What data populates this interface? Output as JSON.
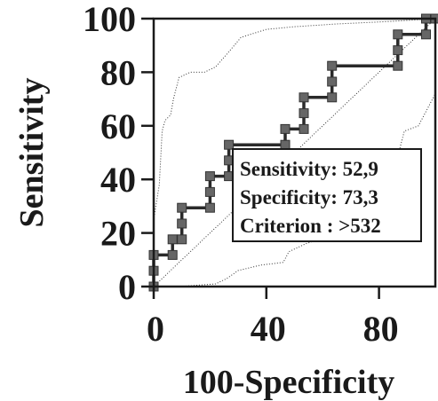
{
  "chart_data": {
    "type": "line",
    "title": "",
    "xlabel": "100-Specificity",
    "ylabel": "Sensitivity",
    "xlim": [
      0,
      100
    ],
    "ylim": [
      0,
      100
    ],
    "x_ticks": [
      "0",
      "40",
      "80"
    ],
    "y_ticks": [
      "0",
      "20",
      "40",
      "60",
      "80",
      "100"
    ],
    "series": [
      {
        "role": "roc",
        "marker": "square",
        "color": "#666666",
        "points": [
          [
            0,
            0
          ],
          [
            0,
            5.9
          ],
          [
            0,
            11.8
          ],
          [
            6.7,
            11.8
          ],
          [
            6.7,
            17.6
          ],
          [
            10,
            17.6
          ],
          [
            10,
            23.5
          ],
          [
            10,
            29.4
          ],
          [
            20,
            29.4
          ],
          [
            20,
            35.3
          ],
          [
            20,
            41.2
          ],
          [
            26.7,
            41.2
          ],
          [
            26.7,
            47.1
          ],
          [
            26.7,
            52.9
          ],
          [
            46.7,
            52.9
          ],
          [
            46.7,
            58.8
          ],
          [
            53.3,
            58.8
          ],
          [
            53.3,
            64.7
          ],
          [
            53.3,
            70.6
          ],
          [
            63.3,
            70.6
          ],
          [
            63.3,
            76.5
          ],
          [
            63.3,
            82.4
          ],
          [
            86.7,
            82.4
          ],
          [
            86.7,
            88.2
          ],
          [
            86.7,
            94.1
          ],
          [
            96.7,
            94.1
          ],
          [
            96.7,
            100
          ],
          [
            100,
            100
          ]
        ]
      },
      {
        "role": "ci-upper",
        "style": "dotted",
        "points": [
          [
            0,
            0
          ],
          [
            0,
            25
          ],
          [
            2,
            38
          ],
          [
            3,
            58
          ],
          [
            4,
            62
          ],
          [
            6,
            64
          ],
          [
            7,
            70
          ],
          [
            9,
            78
          ],
          [
            13,
            80
          ],
          [
            18,
            80
          ],
          [
            22,
            82
          ],
          [
            27,
            88
          ],
          [
            31,
            93
          ],
          [
            40,
            96
          ],
          [
            50,
            97
          ],
          [
            65,
            98
          ],
          [
            85,
            99
          ],
          [
            100,
            100
          ]
        ]
      },
      {
        "role": "ci-lower",
        "style": "dotted",
        "points": [
          [
            0,
            0
          ],
          [
            9,
            0
          ],
          [
            22,
            1
          ],
          [
            26,
            3
          ],
          [
            30,
            6
          ],
          [
            34,
            7
          ],
          [
            38,
            8
          ],
          [
            46,
            9
          ],
          [
            48,
            13
          ],
          [
            50,
            14
          ],
          [
            54,
            16
          ],
          [
            57,
            17
          ],
          [
            63,
            18
          ],
          [
            74,
            21
          ],
          [
            80,
            31
          ],
          [
            86,
            44
          ],
          [
            87,
            50
          ],
          [
            89,
            58
          ],
          [
            94,
            60
          ],
          [
            97,
            66
          ],
          [
            100,
            72
          ]
        ]
      },
      {
        "role": "reference",
        "style": "dotted",
        "points": [
          [
            0,
            0
          ],
          [
            100,
            100
          ]
        ]
      }
    ],
    "annotation": {
      "lines": [
        "Sensitivity: 52,9",
        "Specificity: 73,3",
        "Criterion : >532"
      ],
      "anchor_point": [
        26.7,
        52.9
      ]
    },
    "grid": false,
    "legend": "none"
  }
}
